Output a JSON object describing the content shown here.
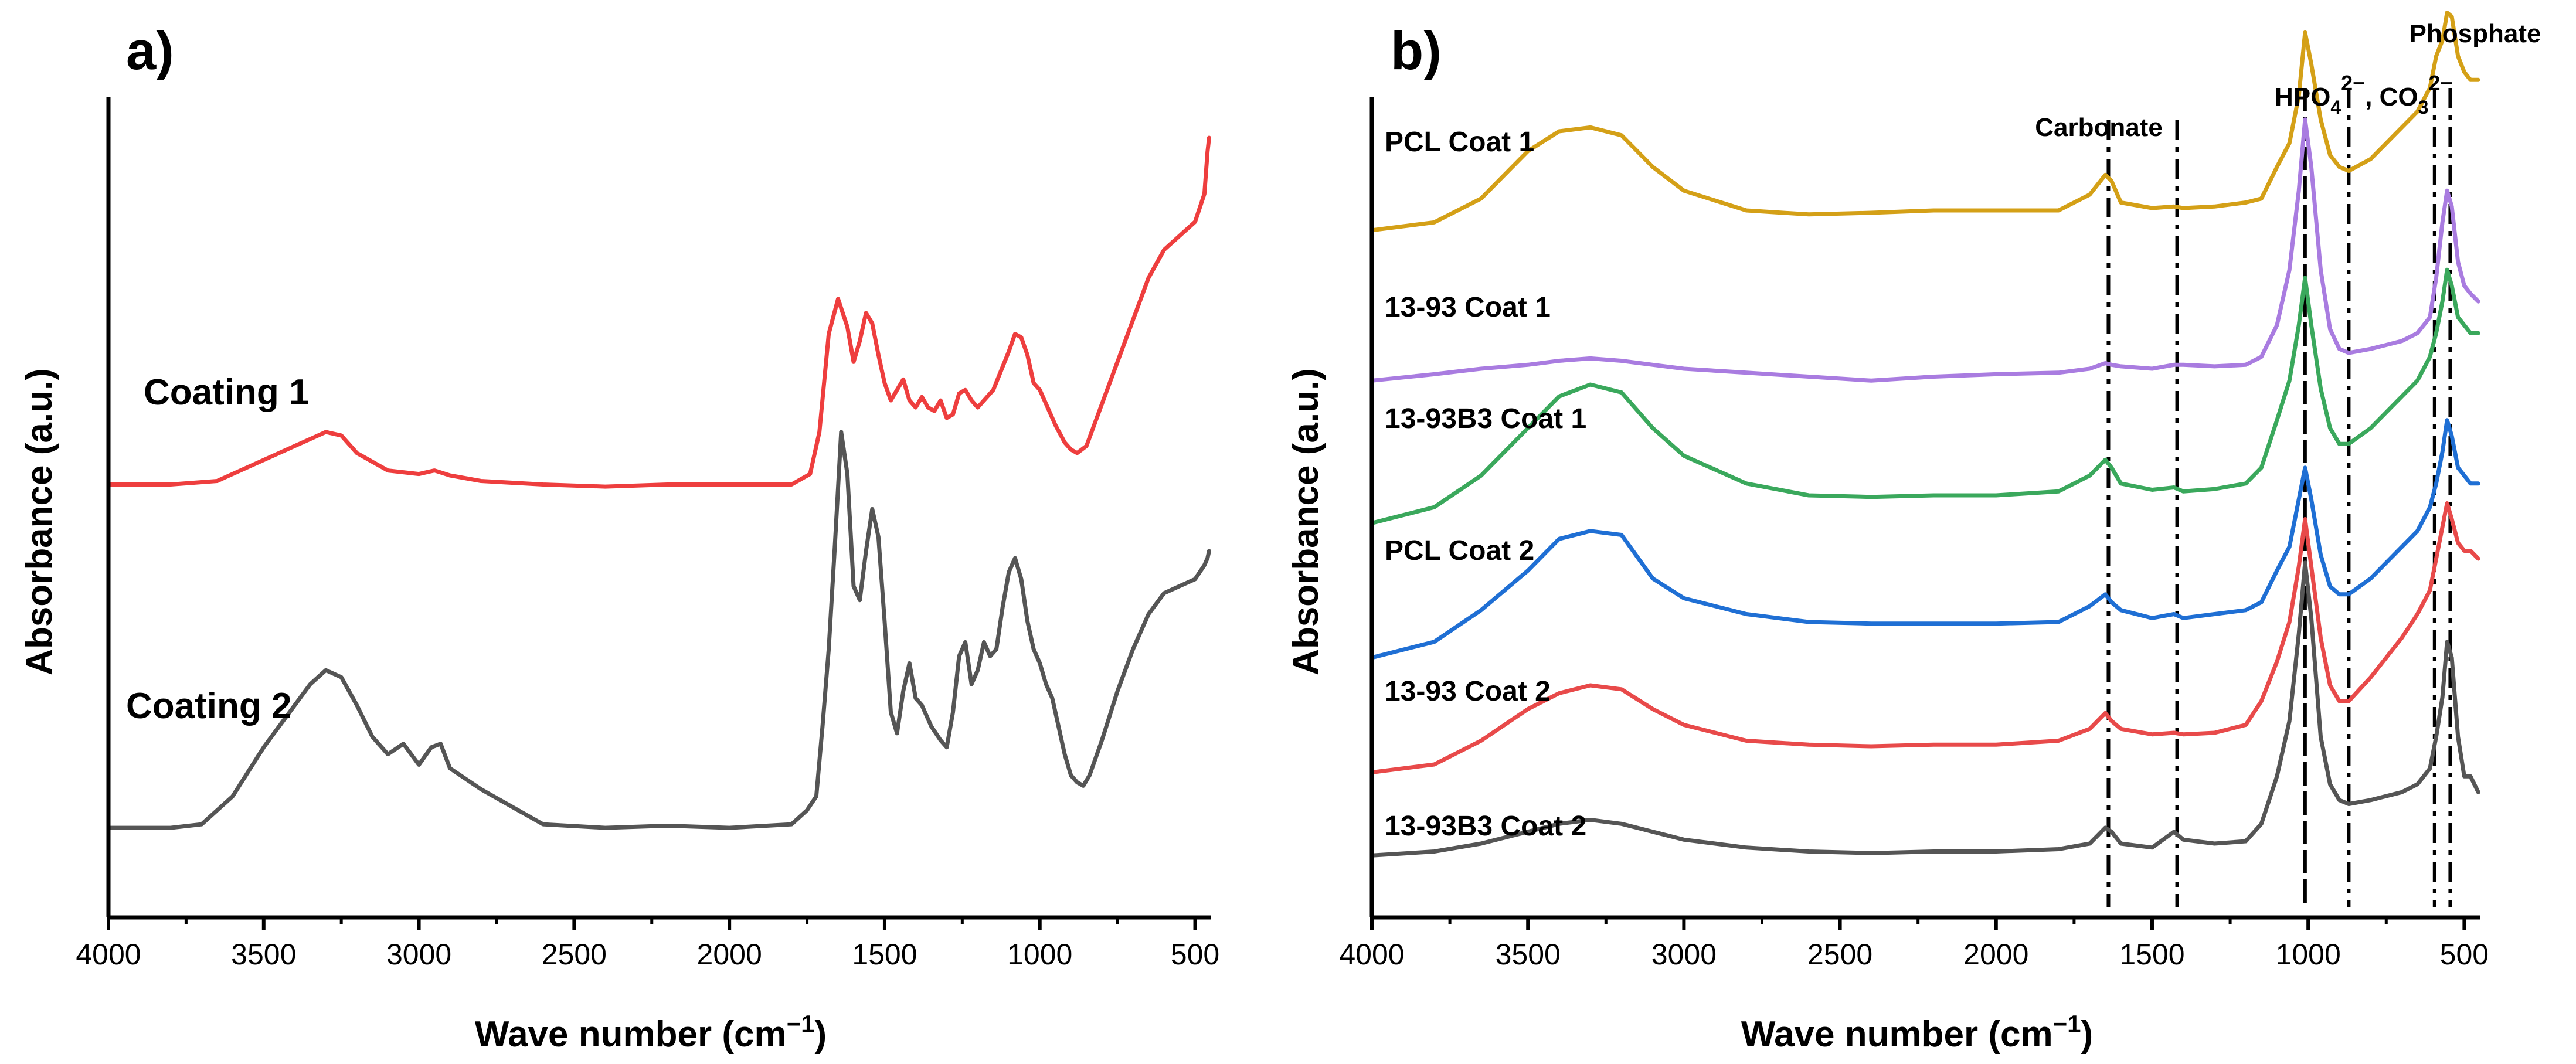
{
  "chart_data": [
    {
      "panel": "a)",
      "type": "line",
      "title": "",
      "xlabel": "Wave number (cm",
      "xlabel_superscript": "−1",
      "xlabel_suffix": ")",
      "ylabel": "Absorbance (a.u.)",
      "xlim": [
        4000,
        450
      ],
      "x_reversed": true,
      "ylim": [
        0,
        1
      ],
      "y_ticks_shown": false,
      "grid": false,
      "x_ticks": [
        {
          "value": 4000,
          "label": "4000"
        },
        {
          "value": 3500,
          "label": "3500"
        },
        {
          "value": 3000,
          "label": "3000"
        },
        {
          "value": 2500,
          "label": "2500"
        },
        {
          "value": 2000,
          "label": "2000"
        },
        {
          "value": 1500,
          "label": "1500"
        },
        {
          "value": 1000,
          "label": "1000"
        },
        {
          "value": 500,
          "label": "500"
        }
      ],
      "series": [
        {
          "name": "Coating 1",
          "color": "#ee3e3e",
          "x": [
            4000,
            3800,
            3650,
            3500,
            3400,
            3350,
            3300,
            3250,
            3200,
            3100,
            3000,
            2950,
            2900,
            2800,
            2600,
            2400,
            2200,
            2000,
            1800,
            1740,
            1710,
            1680,
            1650,
            1620,
            1600,
            1580,
            1560,
            1540,
            1520,
            1500,
            1480,
            1460,
            1440,
            1420,
            1400,
            1380,
            1360,
            1340,
            1320,
            1300,
            1280,
            1260,
            1240,
            1220,
            1200,
            1150,
            1100,
            1080,
            1060,
            1040,
            1020,
            1000,
            980,
            950,
            920,
            900,
            880,
            850,
            800,
            750,
            700,
            650,
            600,
            550,
            500,
            470,
            460,
            455
          ],
          "y": [
            0.505,
            0.505,
            0.51,
            0.54,
            0.56,
            0.57,
            0.58,
            0.575,
            0.55,
            0.525,
            0.52,
            0.525,
            0.518,
            0.51,
            0.505,
            0.502,
            0.505,
            0.505,
            0.505,
            0.52,
            0.58,
            0.72,
            0.77,
            0.73,
            0.68,
            0.71,
            0.75,
            0.735,
            0.69,
            0.65,
            0.625,
            0.64,
            0.655,
            0.625,
            0.615,
            0.63,
            0.615,
            0.61,
            0.625,
            0.6,
            0.605,
            0.635,
            0.64,
            0.625,
            0.615,
            0.64,
            0.695,
            0.72,
            0.715,
            0.69,
            0.65,
            0.64,
            0.62,
            0.59,
            0.565,
            0.555,
            0.55,
            0.56,
            0.62,
            0.68,
            0.74,
            0.8,
            0.84,
            0.86,
            0.88,
            0.92,
            0.98,
            1.0
          ]
        },
        {
          "name": "Coating 2",
          "color": "#555555",
          "x": [
            4000,
            3800,
            3700,
            3600,
            3500,
            3400,
            3350,
            3300,
            3250,
            3200,
            3150,
            3100,
            3050,
            3000,
            2960,
            2930,
            2900,
            2850,
            2800,
            2600,
            2400,
            2200,
            2000,
            1800,
            1750,
            1720,
            1700,
            1680,
            1660,
            1640,
            1620,
            1600,
            1580,
            1560,
            1540,
            1520,
            1500,
            1480,
            1460,
            1440,
            1420,
            1400,
            1380,
            1350,
            1320,
            1300,
            1280,
            1260,
            1240,
            1220,
            1200,
            1180,
            1160,
            1140,
            1120,
            1100,
            1080,
            1060,
            1040,
            1020,
            1000,
            980,
            960,
            940,
            920,
            900,
            880,
            860,
            840,
            800,
            750,
            700,
            650,
            600,
            550,
            500,
            470,
            460,
            455
          ],
          "y": [
            0.015,
            0.015,
            0.02,
            0.06,
            0.13,
            0.19,
            0.22,
            0.24,
            0.23,
            0.19,
            0.145,
            0.12,
            0.135,
            0.105,
            0.13,
            0.135,
            0.1,
            0.085,
            0.07,
            0.02,
            0.015,
            0.018,
            0.015,
            0.02,
            0.04,
            0.06,
            0.16,
            0.27,
            0.42,
            0.58,
            0.52,
            0.36,
            0.34,
            0.41,
            0.47,
            0.43,
            0.31,
            0.18,
            0.15,
            0.21,
            0.25,
            0.2,
            0.19,
            0.16,
            0.14,
            0.13,
            0.18,
            0.26,
            0.28,
            0.22,
            0.24,
            0.28,
            0.26,
            0.27,
            0.33,
            0.38,
            0.4,
            0.37,
            0.31,
            0.27,
            0.25,
            0.22,
            0.2,
            0.16,
            0.12,
            0.09,
            0.08,
            0.075,
            0.09,
            0.14,
            0.21,
            0.27,
            0.32,
            0.35,
            0.36,
            0.37,
            0.39,
            0.4,
            0.41
          ]
        }
      ],
      "annotations": [
        {
          "text": "Coating 1",
          "series": "Coating 1",
          "x_anchor": 3780,
          "y": 0.6
        },
        {
          "text": "Coating 2",
          "series": "Coating 2",
          "x_anchor": 3800,
          "y": 0.19
        }
      ]
    },
    {
      "panel": "b)",
      "type": "line",
      "title": "",
      "xlabel": "Wave number (cm",
      "xlabel_superscript": "−1",
      "xlabel_suffix": ")",
      "ylabel": "Absorbance (a.u.)",
      "xlim": [
        4000,
        450
      ],
      "x_reversed": true,
      "ylim": [
        0,
        1
      ],
      "y_ticks_shown": false,
      "grid": false,
      "x_ticks": [
        {
          "value": 4000,
          "label": "4000"
        },
        {
          "value": 3500,
          "label": "3500"
        },
        {
          "value": 3000,
          "label": "3000"
        },
        {
          "value": 2500,
          "label": "2500"
        },
        {
          "value": 2000,
          "label": "2000"
        },
        {
          "value": 1500,
          "label": "1500"
        },
        {
          "value": 1000,
          "label": "1000"
        },
        {
          "value": 500,
          "label": "500"
        }
      ],
      "x_common": [
        4000,
        3800,
        3650,
        3500,
        3400,
        3300,
        3200,
        3100,
        3000,
        2800,
        2600,
        2400,
        2200,
        2000,
        1800,
        1700,
        1650,
        1630,
        1600,
        1500,
        1430,
        1400,
        1300,
        1200,
        1150,
        1100,
        1060,
        1030,
        1010,
        990,
        960,
        930,
        900,
        870,
        800,
        700,
        650,
        610,
        590,
        570,
        555,
        540,
        520,
        500,
        480,
        455
      ],
      "series": [
        {
          "name": "PCL Coat 1",
          "color": "#d4a017",
          "offset": 0.835,
          "y": [
            0.0,
            0.01,
            0.04,
            0.1,
            0.125,
            0.13,
            0.12,
            0.08,
            0.05,
            0.025,
            0.02,
            0.022,
            0.025,
            0.025,
            0.025,
            0.045,
            0.07,
            0.062,
            0.035,
            0.028,
            0.03,
            0.028,
            0.03,
            0.035,
            0.04,
            0.08,
            0.11,
            0.17,
            0.25,
            0.21,
            0.14,
            0.095,
            0.08,
            0.075,
            0.09,
            0.13,
            0.15,
            0.18,
            0.22,
            0.24,
            0.275,
            0.27,
            0.22,
            0.2,
            0.19,
            0.19
          ]
        },
        {
          "name": "13-93 Coat 1",
          "color": "#a97ce0",
          "offset": 0.645,
          "y": [
            0.0,
            0.008,
            0.015,
            0.02,
            0.025,
            0.028,
            0.025,
            0.02,
            0.015,
            0.01,
            0.005,
            0.0,
            0.005,
            0.008,
            0.01,
            0.015,
            0.022,
            0.02,
            0.018,
            0.015,
            0.02,
            0.02,
            0.018,
            0.02,
            0.03,
            0.07,
            0.14,
            0.24,
            0.33,
            0.27,
            0.14,
            0.065,
            0.04,
            0.035,
            0.04,
            0.05,
            0.06,
            0.08,
            0.13,
            0.2,
            0.24,
            0.22,
            0.15,
            0.12,
            0.11,
            0.1
          ]
        },
        {
          "name": "13-93B3 Coat 1",
          "color": "#3aa85c",
          "offset": 0.465,
          "y": [
            0.0,
            0.02,
            0.06,
            0.12,
            0.16,
            0.175,
            0.165,
            0.12,
            0.085,
            0.05,
            0.035,
            0.033,
            0.035,
            0.035,
            0.04,
            0.06,
            0.08,
            0.07,
            0.05,
            0.042,
            0.045,
            0.04,
            0.043,
            0.05,
            0.07,
            0.13,
            0.18,
            0.25,
            0.31,
            0.25,
            0.17,
            0.12,
            0.1,
            0.1,
            0.12,
            0.16,
            0.18,
            0.21,
            0.24,
            0.28,
            0.32,
            0.3,
            0.26,
            0.25,
            0.24,
            0.24
          ]
        },
        {
          "name": "PCL Coat 2",
          "color": "#1f6fd4",
          "offset": 0.295,
          "y": [
            0.0,
            0.02,
            0.06,
            0.11,
            0.15,
            0.16,
            0.155,
            0.1,
            0.075,
            0.055,
            0.045,
            0.043,
            0.043,
            0.043,
            0.045,
            0.065,
            0.08,
            0.07,
            0.06,
            0.05,
            0.055,
            0.05,
            0.055,
            0.06,
            0.07,
            0.11,
            0.14,
            0.2,
            0.24,
            0.2,
            0.13,
            0.09,
            0.08,
            0.08,
            0.1,
            0.14,
            0.16,
            0.19,
            0.22,
            0.26,
            0.3,
            0.28,
            0.24,
            0.23,
            0.22,
            0.22
          ]
        },
        {
          "name": "13-93 Coat 2",
          "color": "#e84a4a",
          "offset": 0.15,
          "y": [
            0.0,
            0.01,
            0.04,
            0.08,
            0.1,
            0.11,
            0.105,
            0.08,
            0.06,
            0.04,
            0.035,
            0.033,
            0.035,
            0.035,
            0.04,
            0.055,
            0.075,
            0.065,
            0.055,
            0.048,
            0.05,
            0.048,
            0.05,
            0.06,
            0.09,
            0.14,
            0.19,
            0.26,
            0.32,
            0.26,
            0.17,
            0.11,
            0.09,
            0.09,
            0.12,
            0.17,
            0.2,
            0.23,
            0.27,
            0.31,
            0.34,
            0.32,
            0.29,
            0.28,
            0.28,
            0.27
          ]
        },
        {
          "name": "13-93B3 Coat 2",
          "color": "#555555",
          "offset": 0.045,
          "y": [
            0.0,
            0.005,
            0.015,
            0.03,
            0.04,
            0.045,
            0.04,
            0.03,
            0.02,
            0.01,
            0.005,
            0.003,
            0.005,
            0.005,
            0.008,
            0.015,
            0.035,
            0.03,
            0.015,
            0.01,
            0.03,
            0.02,
            0.015,
            0.018,
            0.04,
            0.1,
            0.17,
            0.28,
            0.37,
            0.3,
            0.15,
            0.09,
            0.07,
            0.065,
            0.07,
            0.08,
            0.09,
            0.11,
            0.15,
            0.2,
            0.27,
            0.25,
            0.15,
            0.1,
            0.1,
            0.08
          ]
        }
      ],
      "reference_lines": [
        {
          "x": 1640,
          "style": "dash-dot"
        },
        {
          "x": 1420,
          "style": "dash-dot"
        },
        {
          "x": 1010,
          "style": "solid-dash"
        },
        {
          "x": 870,
          "style": "dash-dot"
        },
        {
          "x": 595,
          "style": "dash-dot"
        },
        {
          "x": 545,
          "style": "dash-dot"
        }
      ],
      "annotations": {
        "carbonate": "Carbonate",
        "phosphate": "Phosphate",
        "hpo_main": "HPO",
        "hpo_sub": "4",
        "hpo_sup": "2−",
        "co3_main": ", CO",
        "co3_sub": "3",
        "co3_sup": "2−"
      }
    }
  ]
}
